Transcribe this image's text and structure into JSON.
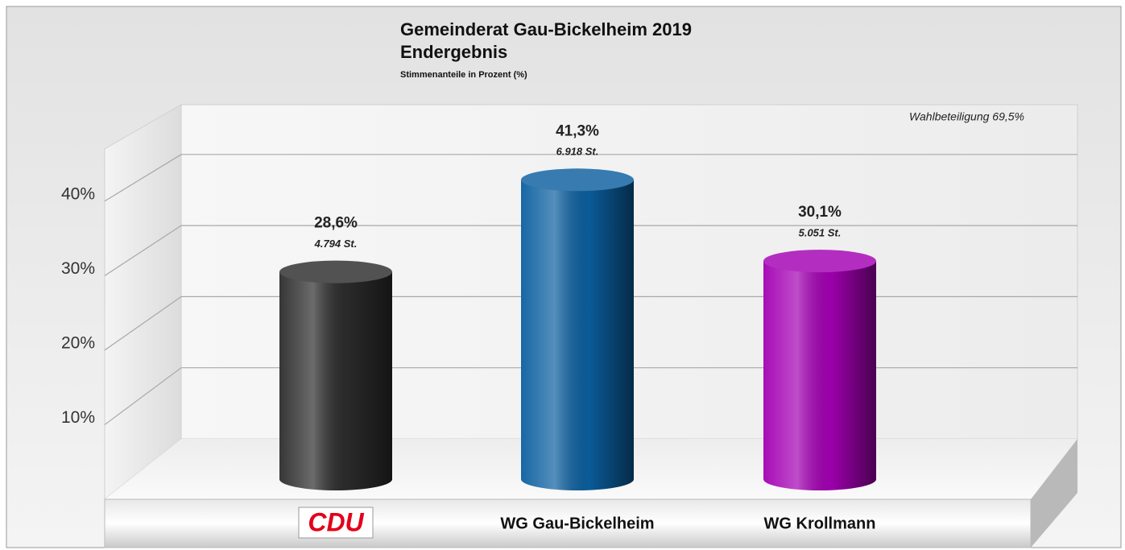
{
  "chart_data": {
    "type": "bar3d",
    "title": "Gemeinderat Gau-Bickelheim 2019",
    "subtitle": "Endergebnis",
    "note": "Stimmenanteile in Prozent (%)",
    "annotation": "Wahlbeteiligung 69,5%",
    "categories": [
      "CDU",
      "WG Gau-Bickelheim",
      "WG Krollmann"
    ],
    "values": [
      28.6,
      41.3,
      30.1
    ],
    "value_labels": [
      "28,6%",
      "41,3%",
      "30,1%"
    ],
    "vote_labels": [
      "4.794 St.",
      "6.918 St.",
      "5.051 St."
    ],
    "colors": [
      "#2c2c2c",
      "#0b5f9f",
      "#a300b3"
    ],
    "ylim": [
      0,
      47
    ],
    "yticks": [
      {
        "value": 10,
        "label": "10%"
      },
      {
        "value": 20,
        "label": "20%"
      },
      {
        "value": 30,
        "label": "30%"
      },
      {
        "value": 40,
        "label": "40%"
      }
    ],
    "grid": true
  }
}
